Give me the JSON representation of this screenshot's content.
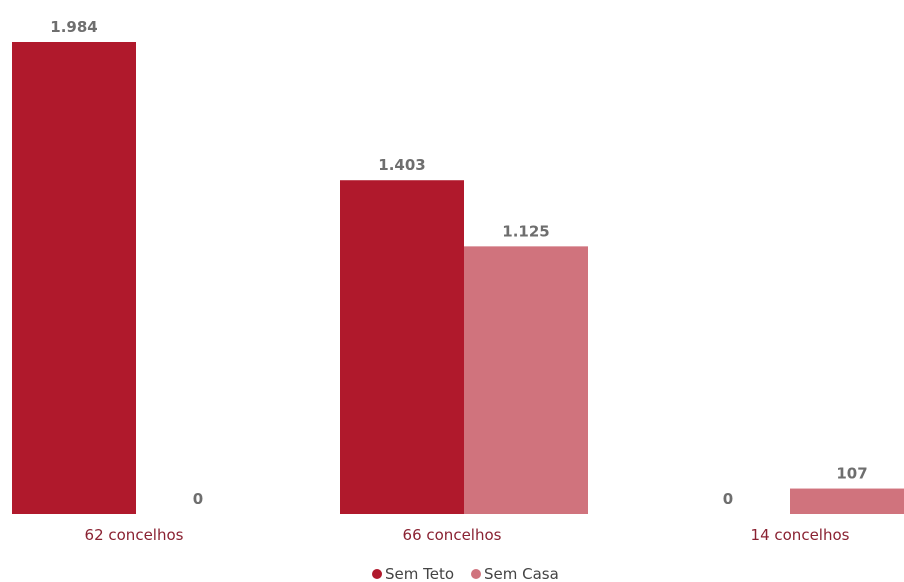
{
  "chart_data": {
    "type": "bar",
    "categories": [
      "62 concelhos",
      "66 concelhos",
      "14 concelhos"
    ],
    "series": [
      {
        "name": "Sem Teto",
        "values": [
          1984,
          1403,
          0
        ],
        "value_labels": [
          "1.984",
          "1.403",
          "0"
        ],
        "color": "#b0192c"
      },
      {
        "name": "Sem Casa",
        "values": [
          0,
          1125,
          107
        ],
        "value_labels": [
          "0",
          "1.125",
          "107"
        ],
        "color": "#d0737d"
      }
    ],
    "title": "",
    "xlabel": "",
    "ylabel": "",
    "ylim": [
      0,
      1984
    ],
    "grid": false,
    "legend_position": "bottom-center"
  },
  "colors": {
    "sem_teto": "#b0192c",
    "sem_casa": "#d0737d",
    "value_text": "#6e6e6e",
    "category_text": "#8a2232"
  }
}
